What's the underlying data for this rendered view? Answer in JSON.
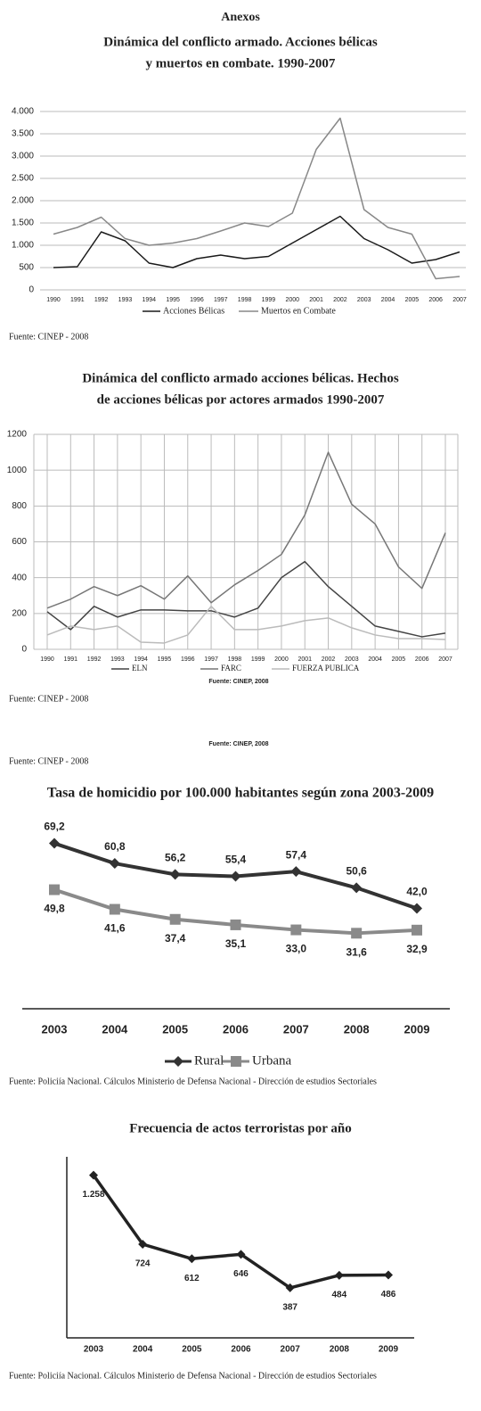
{
  "header": {
    "title": "Anexos"
  },
  "chart_data": [
    {
      "type": "line",
      "title": [
        "Dinámica del conflicto armado. Acciones bélicas",
        "y muertos en combate. 1990-2007"
      ],
      "categories": [
        "1990",
        "1991",
        "1992",
        "1993",
        "1994",
        "1995",
        "1996",
        "1997",
        "1998",
        "1999",
        "2000",
        "2001",
        "2002",
        "2003",
        "2004",
        "2005",
        "2006",
        "2007"
      ],
      "series": [
        {
          "name": "Acciones Bélicas",
          "color": "#1a1a1a",
          "values": [
            500,
            520,
            1300,
            1100,
            600,
            500,
            700,
            780,
            700,
            750,
            1050,
            1350,
            1650,
            1150,
            900,
            600,
            680,
            850
          ]
        },
        {
          "name": "Muertos en Combate",
          "color": "#888888",
          "values": [
            1250,
            1400,
            1630,
            1150,
            1000,
            1050,
            1150,
            1320,
            1500,
            1420,
            1720,
            3150,
            3850,
            1800,
            1400,
            1250,
            250,
            300
          ]
        }
      ],
      "ylim": [
        0,
        4000
      ],
      "yticks": [
        0,
        500,
        {
          "value": 1000,
          "label": "1.000"
        },
        {
          "value": 1500,
          "label": "1.500"
        },
        {
          "value": 2000,
          "label": "2.000"
        },
        {
          "value": 2500,
          "label": "2.500"
        },
        {
          "value": 3000,
          "label": "3.000"
        },
        {
          "value": 3500,
          "label": "3.500"
        },
        {
          "value": 4000,
          "label": "4.000"
        }
      ],
      "grid": true,
      "source": "Fuente: CINEP - 2008"
    },
    {
      "type": "line",
      "title": [
        "Dinámica del conflicto armado acciones bélicas. Hechos",
        "de acciones bélicas por actores armados 1990-2007"
      ],
      "categories": [
        "1990",
        "1991",
        "1992",
        "1993",
        "1994",
        "1995",
        "1996",
        "1997",
        "1998",
        "1999",
        "2000",
        "2001",
        "2002",
        "2003",
        "2004",
        "2005",
        "2006",
        "2007"
      ],
      "series": [
        {
          "name": "ELN",
          "color": "#444444",
          "values": [
            210,
            110,
            240,
            180,
            220,
            220,
            215,
            215,
            180,
            230,
            400,
            490,
            350,
            240,
            130,
            100,
            70,
            90
          ]
        },
        {
          "name": "FARC",
          "color": "#777777",
          "values": [
            230,
            280,
            350,
            300,
            355,
            280,
            410,
            260,
            360,
            440,
            530,
            750,
            1100,
            810,
            700,
            460,
            340,
            650
          ]
        },
        {
          "name": "FUERZA PUBLICA",
          "color": "#bbbbbb",
          "values": [
            80,
            130,
            110,
            130,
            40,
            35,
            80,
            240,
            110,
            110,
            130,
            160,
            175,
            120,
            80,
            60,
            60,
            55
          ]
        }
      ],
      "ylim": [
        0,
        1200
      ],
      "yticks": [
        0,
        200,
        400,
        600,
        800,
        1000,
        1200
      ],
      "grid": "both",
      "note": "Fuente: CINEP, 2008",
      "source": "Fuente: CINEP - 2008"
    },
    {
      "type": "line",
      "title": "Tasa de homicidio por 100.000 habitantes según zona 2003-2009",
      "categories": [
        "2003",
        "2004",
        "2005",
        "2006",
        "2007",
        "2008",
        "2009"
      ],
      "series": [
        {
          "name": "Rural",
          "color": "#333333",
          "marker": "diamond",
          "values": [
            69.2,
            60.8,
            56.2,
            55.4,
            57.4,
            50.6,
            42.0
          ],
          "value_labels": [
            "69,2",
            "60,8",
            "56,2",
            "55,4",
            "57,4",
            "50,6",
            "42,0"
          ]
        },
        {
          "name": "Urbana",
          "color": "#8a8a8a",
          "marker": "square",
          "values": [
            49.8,
            41.6,
            37.4,
            35.1,
            33.0,
            31.6,
            32.9
          ],
          "value_labels": [
            "49,8",
            "41,6",
            "37,4",
            "35,1",
            "33,0",
            "31,6",
            "32,9"
          ]
        }
      ],
      "ylim": [
        0,
        75
      ],
      "source": "Fuente: Policiía Nacional. Cálculos Ministerio de Defensa Nacional - Dirección de estudios Sectoriales"
    },
    {
      "type": "line",
      "title": "Frecuencia de actos terroristas por año",
      "categories": [
        "2003",
        "2004",
        "2005",
        "2006",
        "2007",
        "2008",
        "2009"
      ],
      "series": [
        {
          "color": "#222222",
          "marker": "diamond",
          "values": [
            1258,
            724,
            612,
            646,
            387,
            484,
            486
          ],
          "value_labels": [
            "1.258",
            "724",
            "612",
            "646",
            "387",
            "484",
            "486"
          ]
        }
      ],
      "ylim": [
        0,
        1400
      ],
      "source": "Fuente: Policiía Nacional. Cálculos Ministerio de Defensa Nacional - Dirección de estudios Sectoriales"
    }
  ],
  "notes": [
    "Fuente: CINEP, 2008",
    "Fuente: CINEP - 2008"
  ]
}
